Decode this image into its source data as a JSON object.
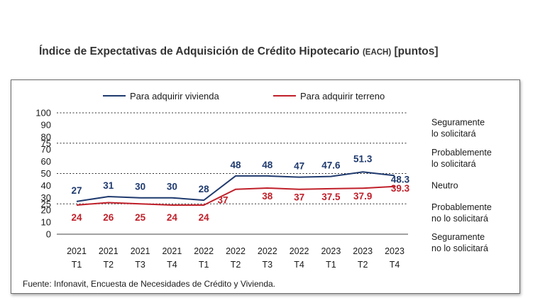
{
  "chart_data": {
    "type": "line",
    "title": "Índice de Expectativas de Adquisición de Crédito Hipotecario",
    "title_abbr": "(EACH)",
    "title_unit": "[puntos]",
    "x": [
      "2021 T1",
      "2021 T2",
      "2021 T3",
      "2021 T4",
      "2022 T1",
      "2022 T2",
      "2022 T3",
      "2022 T4",
      "2023 T1",
      "2023 T2",
      "2023 T4"
    ],
    "x_ticks_top": [
      "2021",
      "2021",
      "2021",
      "2021",
      "2022",
      "2022",
      "2022",
      "2022",
      "2023",
      "2023",
      "2023"
    ],
    "x_ticks_bottom": [
      "T1",
      "T2",
      "T3",
      "T4",
      "T1",
      "T2",
      "T3",
      "T4",
      "T1",
      "T2",
      "T4"
    ],
    "y_ticks": [
      "0",
      "10",
      "20",
      "25",
      "30",
      "40",
      "50",
      "60",
      "70",
      "75",
      "80",
      "90",
      "100"
    ],
    "ylim": [
      0,
      100
    ],
    "reference_lines": [
      25,
      50,
      75,
      100
    ],
    "categories": [
      {
        "label": [
          "Seguramente",
          "lo solicitará"
        ],
        "at": 87.5
      },
      {
        "label": [
          "Probablemente",
          "lo solicitará"
        ],
        "at": 62.5
      },
      {
        "label": [
          "Neutro"
        ],
        "at": 40
      },
      {
        "label": [
          "Probablemente",
          "no lo solicitará"
        ],
        "at": 17.5
      },
      {
        "label": [
          "Seguramente",
          "no lo solicitará"
        ],
        "at": -7
      }
    ],
    "series": [
      {
        "name": "Para adquirir vivienda",
        "color": "#1f3a6e",
        "values": [
          27,
          31,
          30,
          30,
          28,
          48,
          48,
          47,
          47.6,
          51.3,
          48.3
        ],
        "labels": [
          "27",
          "31",
          "30",
          "30",
          "28",
          "48",
          "48",
          "47",
          "47.6",
          "51.3",
          "48.3"
        ]
      },
      {
        "name": "Para adquirir terreno",
        "color": "#c0202a",
        "values": [
          24,
          26,
          25,
          24,
          24,
          37,
          38,
          37,
          37.5,
          37.9,
          39.3
        ],
        "labels": [
          "24",
          "26",
          "25",
          "24",
          "24",
          "37",
          "38",
          "37",
          "37.5",
          "37.9",
          "39.3"
        ]
      }
    ],
    "legend": "top",
    "grid": false
  },
  "source": "Fuente: Infonavit, Encuesta de Necesidades de Crédito y Vivienda."
}
